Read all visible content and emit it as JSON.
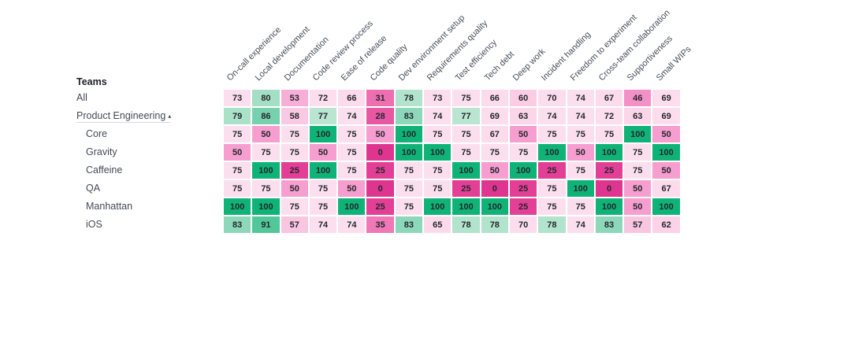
{
  "chart_data": {
    "type": "heatmap",
    "corner_label": "Teams",
    "collapse_icon": "▴",
    "categories": [
      "On-call experience",
      "Local development",
      "Documentation",
      "Code review process",
      "Ease of release",
      "Code quality",
      "Dev environment setup",
      "Requirements quality",
      "Test efficiency",
      "Tech debt",
      "Deep work",
      "Incident handling",
      "Freedom to experiment",
      "Cross-team collaboration",
      "Supportiveness",
      "Small WIPs"
    ],
    "rows": [
      {
        "name": "All",
        "indent": 0,
        "expandable": false,
        "values": [
          73,
          80,
          53,
          72,
          66,
          31,
          78,
          73,
          75,
          66,
          60,
          70,
          74,
          67,
          46,
          69
        ]
      },
      {
        "name": "Product Engineering",
        "indent": 0,
        "expandable": true,
        "values": [
          79,
          86,
          58,
          77,
          74,
          28,
          83,
          74,
          77,
          69,
          63,
          74,
          74,
          72,
          63,
          69
        ]
      },
      {
        "name": "Core",
        "indent": 1,
        "expandable": false,
        "values": [
          75,
          50,
          75,
          100,
          75,
          50,
          100,
          75,
          75,
          67,
          50,
          75,
          75,
          75,
          100,
          50
        ]
      },
      {
        "name": "Gravity",
        "indent": 1,
        "expandable": false,
        "values": [
          50,
          75,
          75,
          50,
          75,
          0,
          100,
          100,
          75,
          75,
          75,
          100,
          50,
          100,
          75,
          100
        ]
      },
      {
        "name": "Caffeine",
        "indent": 1,
        "expandable": false,
        "values": [
          75,
          100,
          25,
          100,
          75,
          25,
          75,
          75,
          100,
          50,
          100,
          25,
          75,
          25,
          75,
          50
        ]
      },
      {
        "name": "QA",
        "indent": 1,
        "expandable": false,
        "values": [
          75,
          75,
          50,
          75,
          50,
          0,
          75,
          75,
          25,
          0,
          25,
          75,
          100,
          0,
          50,
          67
        ]
      },
      {
        "name": "Manhattan",
        "indent": 1,
        "expandable": false,
        "values": [
          100,
          100,
          75,
          75,
          100,
          25,
          75,
          100,
          100,
          100,
          25,
          75,
          75,
          100,
          50,
          100
        ]
      },
      {
        "name": "iOS",
        "indent": 1,
        "expandable": false,
        "values": [
          83,
          91,
          57,
          74,
          74,
          35,
          83,
          65,
          78,
          78,
          70,
          78,
          74,
          83,
          57,
          62
        ]
      }
    ],
    "value_range": [
      0,
      100
    ],
    "legend": "none",
    "grid": "off",
    "colors": {
      "scale_stops": [
        {
          "value": 0,
          "color": "#de3590"
        },
        {
          "value": 25,
          "color": "#e33f97"
        },
        {
          "value": 31,
          "color": "#ed6fb1"
        },
        {
          "value": 46,
          "color": "#f390c7"
        },
        {
          "value": 50,
          "color": "#f59ecf"
        },
        {
          "value": 57,
          "color": "#f9c6e1"
        },
        {
          "value": 66,
          "color": "#fcdcec"
        },
        {
          "value": 75,
          "color": "#fcdfef"
        },
        {
          "value": 76,
          "color": "#c0e7d5"
        },
        {
          "value": 100,
          "color": "#10b377"
        }
      ],
      "cell_text": "#25282e",
      "row_label_text": "#434a56",
      "column_header_text": "#474e5a",
      "corner_label_text": "#1c2128"
    }
  }
}
